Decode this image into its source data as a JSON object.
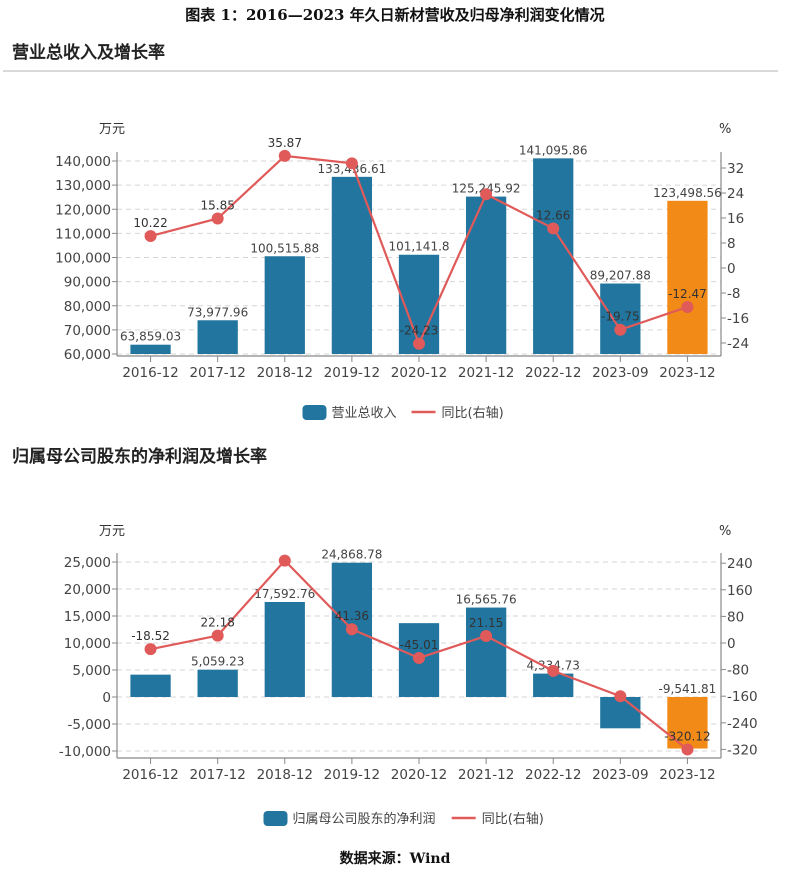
{
  "figure_title": "图表 1：2016—2023 年久日新材营收及归母净利润变化情况",
  "source": "数据来源：Wind",
  "colors": {
    "bar": "#21759e",
    "bar_highlight": "#f28a17",
    "line": "#e05a5a",
    "grid": "#d6d6d6",
    "axis": "#888888"
  },
  "chart_data": [
    {
      "type": "bar",
      "title": "营业总收入及增长率",
      "categories": [
        "2016-12",
        "2017-12",
        "2018-12",
        "2019-12",
        "2020-12",
        "2021-12",
        "2022-12",
        "2023-09",
        "2023-12"
      ],
      "ylabel": "万元",
      "y2label": "%",
      "ylim": [
        60000,
        140000
      ],
      "yticks": [
        60000,
        70000,
        80000,
        90000,
        100000,
        110000,
        120000,
        130000,
        140000
      ],
      "ytick_labels": [
        "60,000",
        "70,000",
        "80,000",
        "90,000",
        "100,000",
        "110,000",
        "120,000",
        "130,000",
        "140,000"
      ],
      "y2ticks": [
        32,
        24,
        16,
        8,
        0,
        -8,
        -16,
        -24
      ],
      "grid": true,
      "legend_position": "bottom",
      "highlight_index": 8,
      "series": [
        {
          "name": "营业总收入",
          "type": "bar",
          "axis": "left",
          "values": [
            63859.03,
            73977.96,
            100515.88,
            133436.61,
            101141.8,
            125245.92,
            141095.86,
            89207.88,
            123498.56
          ],
          "labels": [
            "63,859.03",
            "73,977.96",
            "100,515.88",
            "133,436.61",
            "101,141.8",
            "125,245.92",
            "141,095.86",
            "89,207.88",
            "123,498.56"
          ]
        },
        {
          "name": "同比(右轴)",
          "type": "line",
          "axis": "right",
          "values": [
            10.22,
            15.85,
            35.87,
            33.5,
            -24.23,
            23.6,
            12.66,
            -19.75,
            -12.47
          ],
          "labels": [
            "10.22",
            "15.85",
            "35.87",
            "",
            "-24.23",
            "",
            "12.66",
            "-19.75",
            "-12.47"
          ]
        }
      ]
    },
    {
      "type": "bar",
      "title": "归属母公司股东的净利润及增长率",
      "categories": [
        "2016-12",
        "2017-12",
        "2018-12",
        "2019-12",
        "2020-12",
        "2021-12",
        "2022-12",
        "2023-09",
        "2023-12"
      ],
      "ylabel": "万元",
      "y2label": "%",
      "ylim": [
        -10000,
        25000
      ],
      "yticks": [
        -10000,
        -5000,
        0,
        5000,
        10000,
        15000,
        20000,
        25000
      ],
      "ytick_labels": [
        "-10,000",
        "-5,000",
        "0",
        "5,000",
        "10,000",
        "15,000",
        "20,000",
        "25,000"
      ],
      "y2ticks": [
        240,
        160,
        80,
        0,
        -80,
        -160,
        -240,
        -320
      ],
      "grid": true,
      "legend_position": "bottom",
      "highlight_index": 8,
      "series": [
        {
          "name": "归属母公司股东的净利润",
          "type": "bar",
          "axis": "left",
          "values": [
            4140,
            5059.23,
            17592.76,
            24868.78,
            13675,
            16565.76,
            4334.73,
            -5800,
            -9541.81
          ],
          "labels": [
            "",
            "5,059.23",
            "17,592.76",
            "24,868.78",
            "",
            "16,565.76",
            "4,334.73",
            "",
            "-9,541.81"
          ]
        },
        {
          "name": "同比(右轴)",
          "type": "line",
          "axis": "right",
          "values": [
            -18.52,
            22.18,
            247.7,
            41.36,
            -45.01,
            21.15,
            -83.8,
            -160,
            -320.12
          ],
          "labels": [
            "-18.52",
            "22.18",
            "",
            "41.36",
            "-45.01",
            "21.15",
            "",
            "",
            "-320.12"
          ]
        }
      ]
    }
  ]
}
